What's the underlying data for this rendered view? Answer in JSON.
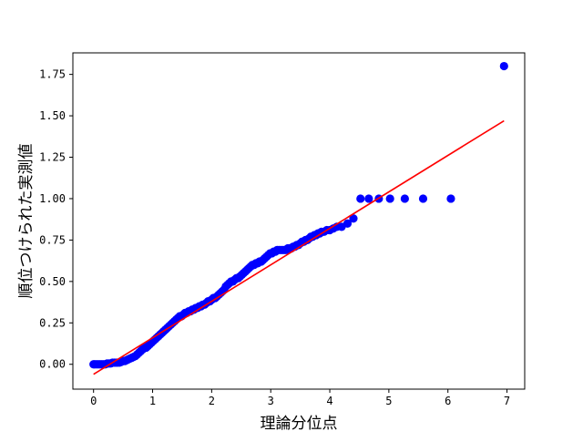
{
  "chart_data": {
    "type": "scatter",
    "title": "",
    "xlabel": "理論分位点",
    "ylabel": "順位つけられた実測値",
    "xlim": [
      -0.35,
      7.3
    ],
    "ylim": [
      -0.15,
      1.88
    ],
    "x_ticks": [
      0,
      1,
      2,
      3,
      4,
      5,
      6,
      7
    ],
    "x_tick_labels": [
      "0",
      "1",
      "2",
      "3",
      "4",
      "5",
      "6",
      "7"
    ],
    "y_ticks": [
      0.0,
      0.25,
      0.5,
      0.75,
      1.0,
      1.25,
      1.5,
      1.75
    ],
    "y_tick_labels": [
      "0.00",
      "0.25",
      "0.50",
      "0.75",
      "1.00",
      "1.25",
      "1.50",
      "1.75"
    ],
    "grid": false,
    "legend": "none",
    "colors": {
      "points": "#0000ff",
      "fit_line": "#ff0000",
      "axes": "#000000"
    },
    "fit_line": {
      "x": [
        0.0,
        6.95
      ],
      "y": [
        -0.06,
        1.47
      ]
    },
    "series": [
      {
        "type": "scatter",
        "points": [
          [
            0.0,
            0.0
          ],
          [
            0.02,
            0.0
          ],
          [
            0.05,
            0.0
          ],
          [
            0.08,
            0.0
          ],
          [
            0.11,
            0.0
          ],
          [
            0.14,
            0.0
          ],
          [
            0.17,
            0.0
          ],
          [
            0.2,
            0.0
          ],
          [
            0.23,
            0.005
          ],
          [
            0.26,
            0.005
          ],
          [
            0.29,
            0.005
          ],
          [
            0.32,
            0.01
          ],
          [
            0.35,
            0.01
          ],
          [
            0.38,
            0.01
          ],
          [
            0.41,
            0.01
          ],
          [
            0.44,
            0.01
          ],
          [
            0.47,
            0.015
          ],
          [
            0.5,
            0.02
          ],
          [
            0.53,
            0.02
          ],
          [
            0.56,
            0.025
          ],
          [
            0.59,
            0.03
          ],
          [
            0.62,
            0.035
          ],
          [
            0.65,
            0.04
          ],
          [
            0.68,
            0.045
          ],
          [
            0.71,
            0.05
          ],
          [
            0.74,
            0.06
          ],
          [
            0.77,
            0.07
          ],
          [
            0.8,
            0.08
          ],
          [
            0.83,
            0.09
          ],
          [
            0.86,
            0.1
          ],
          [
            0.89,
            0.1
          ],
          [
            0.92,
            0.11
          ],
          [
            0.95,
            0.12
          ],
          [
            0.98,
            0.13
          ],
          [
            1.01,
            0.14
          ],
          [
            1.04,
            0.15
          ],
          [
            1.07,
            0.16
          ],
          [
            1.1,
            0.17
          ],
          [
            1.13,
            0.18
          ],
          [
            1.16,
            0.19
          ],
          [
            1.19,
            0.2
          ],
          [
            1.22,
            0.21
          ],
          [
            1.25,
            0.22
          ],
          [
            1.28,
            0.23
          ],
          [
            1.31,
            0.24
          ],
          [
            1.34,
            0.25
          ],
          [
            1.37,
            0.26
          ],
          [
            1.4,
            0.27
          ],
          [
            1.43,
            0.28
          ],
          [
            1.46,
            0.29
          ],
          [
            1.49,
            0.29
          ],
          [
            1.52,
            0.3
          ],
          [
            1.55,
            0.31
          ],
          [
            1.58,
            0.31
          ],
          [
            1.61,
            0.32
          ],
          [
            1.64,
            0.32
          ],
          [
            1.67,
            0.33
          ],
          [
            1.7,
            0.33
          ],
          [
            1.73,
            0.34
          ],
          [
            1.76,
            0.34
          ],
          [
            1.79,
            0.35
          ],
          [
            1.82,
            0.35
          ],
          [
            1.85,
            0.36
          ],
          [
            1.88,
            0.36
          ],
          [
            1.91,
            0.37
          ],
          [
            1.94,
            0.38
          ],
          [
            1.97,
            0.38
          ],
          [
            2.0,
            0.39
          ],
          [
            2.03,
            0.4
          ],
          [
            2.06,
            0.4
          ],
          [
            2.09,
            0.41
          ],
          [
            2.12,
            0.42
          ],
          [
            2.15,
            0.43
          ],
          [
            2.18,
            0.44
          ],
          [
            2.21,
            0.45
          ],
          [
            2.24,
            0.47
          ],
          [
            2.27,
            0.48
          ],
          [
            2.3,
            0.49
          ],
          [
            2.33,
            0.5
          ],
          [
            2.36,
            0.5
          ],
          [
            2.39,
            0.51
          ],
          [
            2.42,
            0.52
          ],
          [
            2.45,
            0.52
          ],
          [
            2.48,
            0.53
          ],
          [
            2.51,
            0.54
          ],
          [
            2.54,
            0.55
          ],
          [
            2.57,
            0.56
          ],
          [
            2.6,
            0.57
          ],
          [
            2.63,
            0.58
          ],
          [
            2.66,
            0.59
          ],
          [
            2.69,
            0.6
          ],
          [
            2.72,
            0.6
          ],
          [
            2.75,
            0.61
          ],
          [
            2.78,
            0.61
          ],
          [
            2.81,
            0.62
          ],
          [
            2.84,
            0.62
          ],
          [
            2.87,
            0.63
          ],
          [
            2.9,
            0.64
          ],
          [
            2.93,
            0.65
          ],
          [
            2.96,
            0.66
          ],
          [
            2.99,
            0.67
          ],
          [
            3.02,
            0.67
          ],
          [
            3.05,
            0.68
          ],
          [
            3.08,
            0.68
          ],
          [
            3.11,
            0.69
          ],
          [
            3.14,
            0.69
          ],
          [
            3.17,
            0.69
          ],
          [
            3.2,
            0.69
          ],
          [
            3.23,
            0.69
          ],
          [
            3.26,
            0.69
          ],
          [
            3.29,
            0.7
          ],
          [
            3.32,
            0.7
          ],
          [
            3.35,
            0.7
          ],
          [
            3.38,
            0.71
          ],
          [
            3.41,
            0.71
          ],
          [
            3.44,
            0.72
          ],
          [
            3.47,
            0.72
          ],
          [
            3.5,
            0.73
          ],
          [
            3.53,
            0.74
          ],
          [
            3.56,
            0.74
          ],
          [
            3.59,
            0.75
          ],
          [
            3.62,
            0.75
          ],
          [
            3.65,
            0.76
          ],
          [
            3.68,
            0.77
          ],
          [
            3.71,
            0.77
          ],
          [
            3.74,
            0.78
          ],
          [
            3.77,
            0.78
          ],
          [
            3.8,
            0.79
          ],
          [
            3.83,
            0.79
          ],
          [
            3.86,
            0.8
          ],
          [
            3.9,
            0.8
          ],
          [
            3.95,
            0.81
          ],
          [
            4.0,
            0.81
          ],
          [
            4.06,
            0.82
          ],
          [
            4.12,
            0.83
          ],
          [
            4.2,
            0.83
          ],
          [
            4.3,
            0.85
          ],
          [
            4.4,
            0.88
          ],
          [
            4.52,
            1.0
          ],
          [
            4.66,
            1.0
          ],
          [
            4.83,
            1.0
          ],
          [
            5.02,
            1.0
          ],
          [
            5.27,
            1.0
          ],
          [
            5.58,
            1.0
          ],
          [
            6.05,
            1.0
          ],
          [
            6.95,
            1.8
          ]
        ]
      }
    ]
  }
}
